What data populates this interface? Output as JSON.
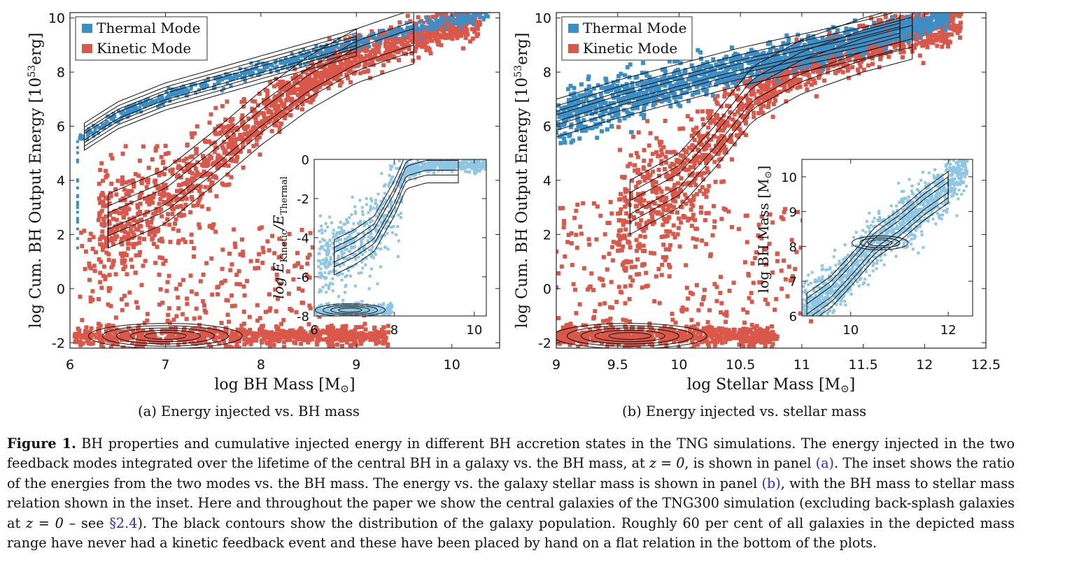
{
  "panel_a": {
    "subcaption": "(a) Energy injected vs. BH mass",
    "ylabel": "log Cum. BH Output Energy [10",
    "ylabel_sup": "53",
    "ylabel_end": "erg]",
    "xlabel": "log BH Mass [M",
    "xlabel_end": "]",
    "legend": [
      "Thermal Mode",
      "Kinetic Mode"
    ],
    "inset": {
      "ylabel": "log E",
      "ylabel_sub1": "Kinetic",
      "ylabel_mid": "/E",
      "ylabel_sub2": "Thermal"
    }
  },
  "panel_b": {
    "subcaption": "(b) Energy injected vs. stellar mass",
    "ylabel": "log Cum. BH Output Energy [10",
    "ylabel_sup": "53",
    "ylabel_end": "erg]",
    "xlabel": "log Stellar Mass [M",
    "xlabel_end": "]",
    "legend": [
      "Thermal Mode",
      "Kinetic Mode"
    ],
    "inset": {
      "ylabel": "log BH Mass [M",
      "ylabel_end": "]"
    }
  },
  "caption": {
    "label": "Figure 1.",
    "text_1": " BH properties and cumulative injected energy in different BH accretion states in the TNG simulations. The energy injected in the two feedback modes integrated over the lifetime of the central BH in a galaxy vs. the BH mass, at ",
    "z1": "z = 0",
    "text_2": ", is shown in panel ",
    "ref_a": "(a)",
    "text_3": ". The inset shows the ratio of the energies from the two modes vs. the BH mass. The energy vs. the galaxy stellar mass is shown in panel ",
    "ref_b": "(b)",
    "text_4": ", with the BH mass to stellar mass relation shown in the inset. Here and throughout the paper we show the central galaxies of the TNG300 simulation (excluding back-splash galaxies at ",
    "z2": "z = 0",
    "text_5": " – see ",
    "ref_sec": "§2.4",
    "text_6": "). The black contours show the distribution of the galaxy population. Roughly 60 per cent of all galaxies in the depicted mass range have never had a kinetic feedback event and these have been placed by hand on a flat relation in the bottom of the plots."
  },
  "colors": {
    "thermal": "#3a8fc7",
    "kinetic": "#d9584a",
    "inset_fill": "#8fc6e3",
    "contour": "#111111"
  },
  "chart_data": [
    {
      "type": "heatmap",
      "title": "",
      "xlabel": "log BH Mass [M☉]",
      "ylabel": "log Cum. BH Output Energy [10^53 erg]",
      "xlim": [
        6,
        10.5
      ],
      "ylim": [
        -2.2,
        10.2
      ],
      "x_ticks": [
        6,
        7,
        8,
        9,
        10
      ],
      "y_ticks": [
        -2,
        0,
        2,
        4,
        6,
        8,
        10
      ],
      "legend_position": "top-left",
      "series": [
        {
          "name": "Thermal Mode",
          "ridge": [
            [
              6.1,
              5.5
            ],
            [
              6.5,
              6.4
            ],
            [
              7.0,
              7.1
            ],
            [
              7.5,
              7.6
            ],
            [
              8.0,
              8.1
            ],
            [
              8.5,
              8.6
            ],
            [
              9.0,
              9.1
            ],
            [
              9.5,
              9.5
            ],
            [
              10.0,
              9.9
            ]
          ]
        },
        {
          "name": "Kinetic Mode",
          "ridge": [
            [
              6.4,
              2.5
            ],
            [
              7.0,
              3.4
            ],
            [
              7.5,
              4.8
            ],
            [
              8.0,
              6.3
            ],
            [
              8.5,
              7.6
            ],
            [
              9.0,
              8.6
            ],
            [
              9.5,
              9.2
            ],
            [
              10.0,
              9.7
            ]
          ],
          "flat_level": -1.75
        }
      ],
      "inset": {
        "type": "heatmap",
        "xlabel": "",
        "ylabel": "log E_Kinetic/E_Thermal",
        "xlim": [
          6,
          10.3
        ],
        "ylim": [
          -8,
          0
        ],
        "x_ticks": [
          6,
          8,
          10
        ],
        "y_ticks": [
          -8,
          -6,
          -4,
          -2,
          0
        ],
        "ridge": [
          [
            6.5,
            -5.0
          ],
          [
            7.0,
            -4.5
          ],
          [
            7.5,
            -3.8
          ],
          [
            8.0,
            -2.0
          ],
          [
            8.3,
            -0.6
          ],
          [
            8.8,
            -0.3
          ],
          [
            9.5,
            -0.3
          ],
          [
            10.0,
            -0.3
          ]
        ],
        "flat_level": -7.7
      }
    },
    {
      "type": "heatmap",
      "title": "",
      "xlabel": "log Stellar Mass [M☉]",
      "ylabel": "log Cum. BH Output Energy [10^53 erg]",
      "xlim": [
        9,
        12.5
      ],
      "ylim": [
        -2.2,
        10.2
      ],
      "x_ticks": [
        9,
        9.5,
        10,
        10.5,
        11,
        11.5,
        12,
        12.5
      ],
      "y_ticks": [
        -2,
        0,
        2,
        4,
        6,
        8,
        10
      ],
      "legend_position": "top-left",
      "series": [
        {
          "name": "Thermal Mode",
          "ridge": [
            [
              9.0,
              6.3
            ],
            [
              9.5,
              7.0
            ],
            [
              10.0,
              7.6
            ],
            [
              10.5,
              8.2
            ],
            [
              11.0,
              8.7
            ],
            [
              11.5,
              9.2
            ],
            [
              12.0,
              9.8
            ]
          ]
        },
        {
          "name": "Kinetic Mode",
          "ridge": [
            [
              9.6,
              3.0
            ],
            [
              10.0,
              4.0
            ],
            [
              10.3,
              5.5
            ],
            [
              10.6,
              7.2
            ],
            [
              11.0,
              8.2
            ],
            [
              11.5,
              9.0
            ],
            [
              12.0,
              9.6
            ]
          ],
          "flat_level": -1.75
        }
      ],
      "inset": {
        "type": "heatmap",
        "xlabel": "",
        "ylabel": "log BH Mass [M☉]",
        "xlim": [
          9,
          12.5
        ],
        "ylim": [
          6,
          10.5
        ],
        "x_ticks": [
          10,
          12
        ],
        "y_ticks": [
          6,
          7,
          8,
          9,
          10
        ],
        "ridge": [
          [
            9.2,
            6.3
          ],
          [
            9.6,
            6.7
          ],
          [
            10.0,
            7.3
          ],
          [
            10.5,
            8.1
          ],
          [
            11.0,
            8.6
          ],
          [
            11.5,
            9.2
          ],
          [
            12.0,
            9.7
          ],
          [
            12.3,
            10.3
          ]
        ]
      }
    }
  ]
}
